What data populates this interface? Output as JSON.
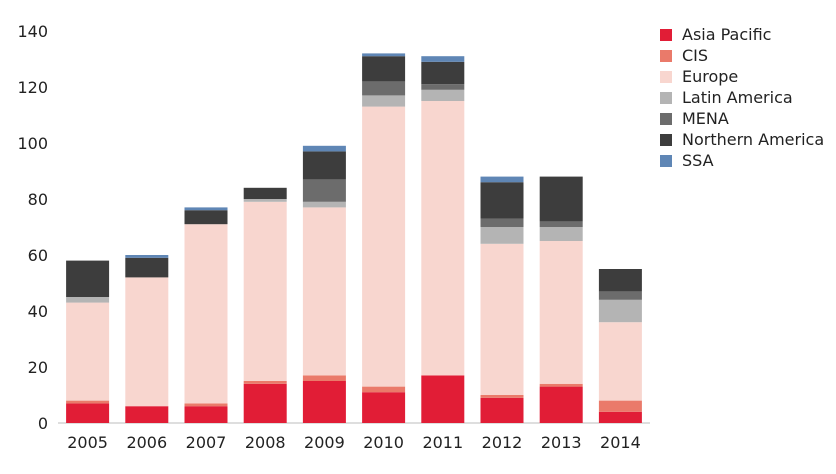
{
  "chart_data": {
    "type": "bar",
    "stacked": true,
    "title": "",
    "xlabel": "",
    "ylabel": "",
    "categories": [
      "2005",
      "2006",
      "2007",
      "2008",
      "2009",
      "2010",
      "2011",
      "2012",
      "2013",
      "2014"
    ],
    "ylim": [
      0,
      140
    ],
    "yticks": [
      0,
      20,
      40,
      60,
      80,
      100,
      120,
      140
    ],
    "grid": false,
    "legend_position": "right",
    "series": [
      {
        "name": "Asia Pacific",
        "color": "#e11d36",
        "values": [
          7,
          6,
          6,
          14,
          15,
          11,
          17,
          9,
          13,
          4
        ]
      },
      {
        "name": "CIS",
        "color": "#ea7a6a",
        "values": [
          1,
          0,
          1,
          1,
          2,
          2,
          0,
          1,
          1,
          4
        ]
      },
      {
        "name": "Europe",
        "color": "#f8d6cf",
        "values": [
          35,
          46,
          64,
          64,
          60,
          100,
          98,
          54,
          51,
          28
        ]
      },
      {
        "name": "Latin America",
        "color": "#b4b4b4",
        "values": [
          2,
          0,
          0,
          1,
          2,
          4,
          4,
          6,
          5,
          8
        ]
      },
      {
        "name": "MENA",
        "color": "#6c6c6c",
        "values": [
          0,
          0,
          0,
          0,
          8,
          5,
          2,
          3,
          2,
          3
        ]
      },
      {
        "name": "Northern America",
        "color": "#3d3d3d",
        "values": [
          13,
          7,
          5,
          4,
          10,
          9,
          8,
          13,
          16,
          8
        ]
      },
      {
        "name": "SSA",
        "color": "#5f86b5",
        "values": [
          0,
          1,
          1,
          0,
          2,
          1,
          2,
          2,
          0,
          0
        ]
      }
    ]
  }
}
